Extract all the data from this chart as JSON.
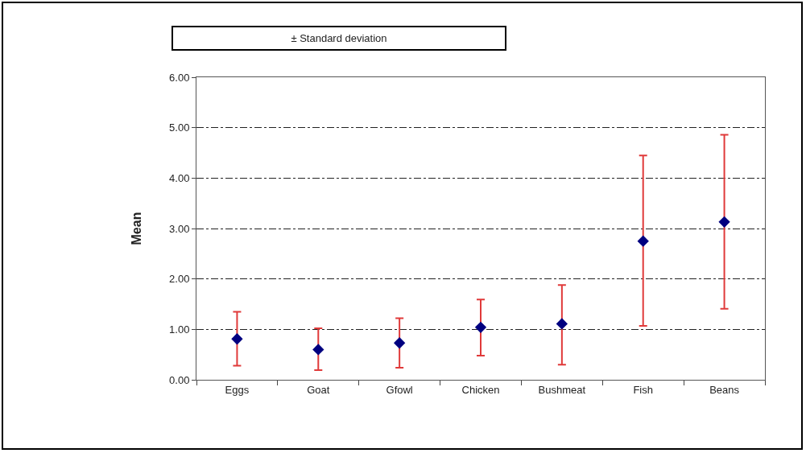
{
  "chart_data": {
    "type": "scatter",
    "ylabel": "Mean",
    "categories": [
      "Eggs",
      "Goat",
      "Gfowl",
      "Chicken",
      "Bushmeat",
      "Fish",
      "Beans"
    ],
    "values": [
      0.81,
      0.6,
      0.73,
      1.04,
      1.11,
      2.75,
      3.13
    ],
    "errors": [
      [
        0.28,
        1.35
      ],
      [
        0.19,
        1.02
      ],
      [
        0.24,
        1.22
      ],
      [
        0.48,
        1.59
      ],
      [
        0.3,
        1.88
      ],
      [
        1.07,
        4.45
      ],
      [
        1.41,
        4.86
      ]
    ],
    "color": "#000080",
    "marker": "diamond",
    "annotations": [
      "± Standard deviation"
    ],
    "ylim": [
      0,
      6
    ],
    "yticks": [
      {
        "value": 0,
        "label": "0.00"
      },
      {
        "value": 1,
        "label": "1.00"
      },
      {
        "value": 2,
        "label": "2.00"
      },
      {
        "value": 3,
        "label": "3.00"
      },
      {
        "value": 4,
        "label": "4.00"
      },
      {
        "value": 5,
        "label": "5.00"
      },
      {
        "value": 6,
        "label": "6.00"
      }
    ],
    "grid": "y"
  }
}
